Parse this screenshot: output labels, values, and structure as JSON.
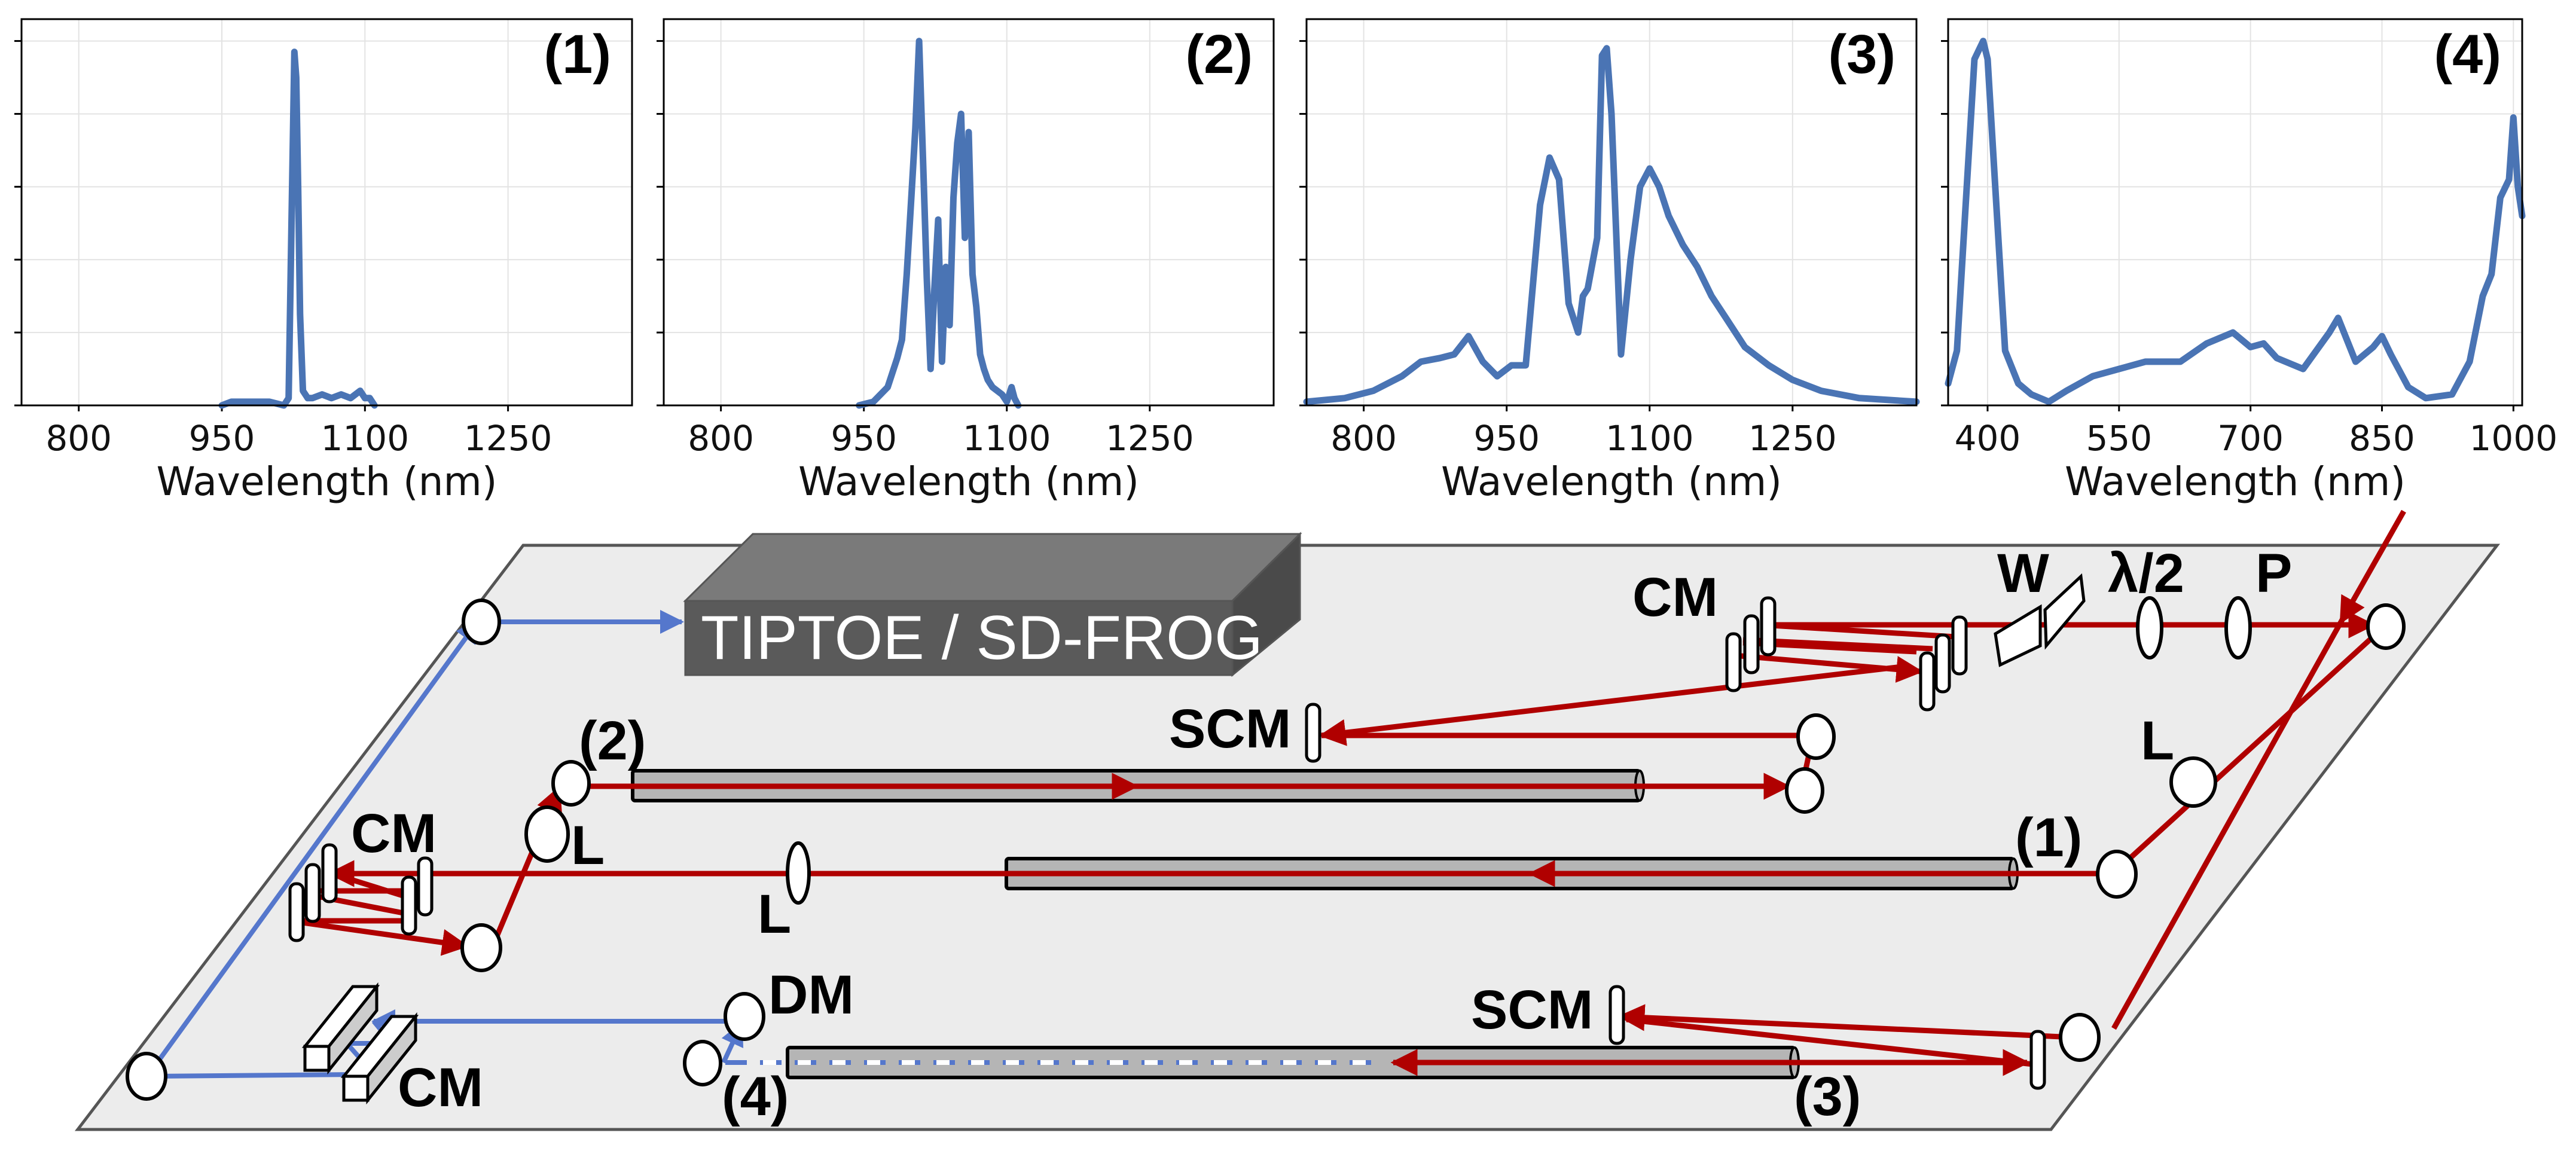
{
  "colors": {
    "spectrum": "#4a74b4",
    "red_beam": "#b00000",
    "blue_beam": "#5577cc",
    "table": "#ececec",
    "fiber": "#b5b5b5",
    "box_front": "#5a5a5a",
    "box_top": "#7a7a7a",
    "box_side": "#4a4a4a"
  },
  "chart_data": [
    {
      "type": "line",
      "panel_label": "(1)",
      "xlabel": "Wavelength (nm)",
      "ylabel": "",
      "xlim": [
        740,
        1380
      ],
      "ylim": [
        0,
        1.06
      ],
      "xticks": [
        800,
        950,
        1100,
        1250
      ],
      "yticks": [
        0,
        0.2,
        0.4,
        0.6,
        0.8,
        1.0
      ],
      "ytick_labels_shown": false,
      "grid": true,
      "x": [
        950,
        960,
        980,
        1000,
        1015,
        1020,
        1023,
        1026,
        1028,
        1030,
        1032,
        1035,
        1040,
        1045,
        1055,
        1065,
        1075,
        1085,
        1095,
        1100,
        1105,
        1110
      ],
      "y": [
        0.0,
        0.01,
        0.01,
        0.01,
        0.0,
        0.02,
        0.5,
        0.97,
        0.9,
        0.6,
        0.25,
        0.04,
        0.02,
        0.02,
        0.03,
        0.02,
        0.03,
        0.02,
        0.04,
        0.02,
        0.02,
        0.0
      ]
    },
    {
      "type": "line",
      "panel_label": "(2)",
      "xlabel": "Wavelength (nm)",
      "ylabel": "",
      "xlim": [
        740,
        1380
      ],
      "ylim": [
        0,
        1.06
      ],
      "xticks": [
        800,
        950,
        1100,
        1250
      ],
      "yticks": [
        0,
        0.2,
        0.4,
        0.6,
        0.8,
        1.0
      ],
      "ytick_labels_shown": false,
      "grid": true,
      "x": [
        945,
        960,
        975,
        985,
        990,
        995,
        1000,
        1004,
        1008,
        1012,
        1016,
        1020,
        1024,
        1028,
        1032,
        1036,
        1040,
        1044,
        1048,
        1052,
        1056,
        1060,
        1064,
        1068,
        1072,
        1076,
        1080,
        1085,
        1090,
        1095,
        1100,
        1105,
        1108,
        1112
      ],
      "y": [
        0.0,
        0.01,
        0.05,
        0.13,
        0.18,
        0.36,
        0.58,
        0.76,
        1.0,
        0.68,
        0.35,
        0.1,
        0.32,
        0.51,
        0.12,
        0.38,
        0.22,
        0.57,
        0.72,
        0.8,
        0.46,
        0.75,
        0.36,
        0.27,
        0.14,
        0.1,
        0.07,
        0.05,
        0.04,
        0.03,
        0.01,
        0.05,
        0.02,
        0.0
      ]
    },
    {
      "type": "line",
      "panel_label": "(3)",
      "xlabel": "Wavelength (nm)",
      "ylabel": "",
      "xlim": [
        740,
        1380
      ],
      "ylim": [
        0,
        1.06
      ],
      "xticks": [
        800,
        950,
        1100,
        1250
      ],
      "yticks": [
        0,
        0.2,
        0.4,
        0.6,
        0.8,
        1.0
      ],
      "ytick_labels_shown": false,
      "grid": true,
      "x": [
        740,
        780,
        810,
        840,
        860,
        880,
        895,
        910,
        925,
        940,
        955,
        970,
        985,
        995,
        1005,
        1015,
        1025,
        1030,
        1035,
        1045,
        1050,
        1055,
        1060,
        1070,
        1080,
        1090,
        1100,
        1110,
        1120,
        1135,
        1150,
        1165,
        1180,
        1200,
        1225,
        1250,
        1280,
        1320,
        1380
      ],
      "y": [
        0.01,
        0.02,
        0.04,
        0.08,
        0.12,
        0.13,
        0.14,
        0.19,
        0.12,
        0.08,
        0.11,
        0.11,
        0.55,
        0.68,
        0.62,
        0.28,
        0.2,
        0.3,
        0.32,
        0.46,
        0.96,
        0.98,
        0.8,
        0.14,
        0.4,
        0.6,
        0.65,
        0.6,
        0.52,
        0.44,
        0.38,
        0.3,
        0.24,
        0.16,
        0.11,
        0.07,
        0.04,
        0.02,
        0.01
      ]
    },
    {
      "type": "line",
      "panel_label": "(4)",
      "xlabel": "Wavelength (nm)",
      "ylabel": "",
      "xlim": [
        355,
        1010
      ],
      "ylim": [
        0,
        1.06
      ],
      "xticks": [
        400,
        550,
        700,
        850,
        1000
      ],
      "yticks": [
        0,
        0.2,
        0.4,
        0.6,
        0.8,
        1.0
      ],
      "ytick_labels_shown": false,
      "grid": true,
      "x": [
        355,
        365,
        375,
        385,
        395,
        400,
        410,
        420,
        435,
        450,
        470,
        490,
        520,
        550,
        580,
        620,
        650,
        680,
        700,
        715,
        730,
        760,
        790,
        800,
        820,
        840,
        850,
        860,
        880,
        900,
        930,
        950,
        965,
        975,
        985,
        995,
        1000,
        1005,
        1010
      ],
      "y": [
        0.06,
        0.15,
        0.55,
        0.95,
        1.0,
        0.95,
        0.55,
        0.15,
        0.06,
        0.03,
        0.01,
        0.04,
        0.08,
        0.1,
        0.12,
        0.12,
        0.17,
        0.2,
        0.16,
        0.17,
        0.13,
        0.1,
        0.2,
        0.24,
        0.12,
        0.16,
        0.19,
        0.14,
        0.05,
        0.02,
        0.03,
        0.12,
        0.3,
        0.36,
        0.57,
        0.62,
        0.79,
        0.6,
        0.52
      ]
    }
  ],
  "diagram": {
    "instrument_box": "TIPTOE / SD-FROG",
    "labels": {
      "cm_top_right": "CM",
      "scm_top": "SCM",
      "panel_2": "(2)",
      "lens_2": "L",
      "cm_left": "CM",
      "lens_left": "L",
      "panel_1": "(1)",
      "lens_right": "L",
      "wedge": "W",
      "half_wave": "λ/2",
      "polarizer": "P",
      "dm": "DM",
      "panel_4": "(4)",
      "scm_bottom": "SCM",
      "panel_3": "(3)",
      "cm_bottom": "CM"
    }
  }
}
